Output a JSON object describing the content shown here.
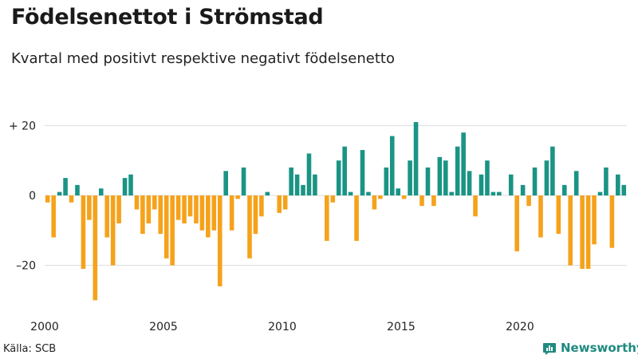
{
  "chart_data": {
    "type": "bar",
    "title": "Födelsenettot i Strömstad",
    "subtitle": "Kvartal med positivt respektive negativt födelsenetto",
    "xlabel": "",
    "ylabel": "",
    "ylim": [
      -32,
      24
    ],
    "yticks": [
      {
        "value": 20,
        "label": "+ 20"
      },
      {
        "value": 0,
        "label": "0"
      },
      {
        "value": -20,
        "label": "–20"
      }
    ],
    "xticks": [
      {
        "year": 2000,
        "label": "2000"
      },
      {
        "year": 2005,
        "label": "2005"
      },
      {
        "year": 2010,
        "label": "2010"
      },
      {
        "year": 2015,
        "label": "2015"
      },
      {
        "year": 2020,
        "label": "2020"
      }
    ],
    "start_year": 2000,
    "periods_per_year": 4,
    "positive_color": "#1a9485",
    "negative_color": "#f5a21b",
    "grid": true,
    "values": [
      -2,
      -12,
      1,
      5,
      -2,
      3,
      -21,
      -7,
      -30,
      2,
      -12,
      -20,
      -8,
      5,
      6,
      -4,
      -11,
      -8,
      -4,
      -11,
      -18,
      -20,
      -7,
      -8,
      -6,
      -8,
      -10,
      -12,
      -10,
      -26,
      7,
      -10,
      -1,
      8,
      -18,
      -11,
      -6,
      1,
      0,
      -5,
      -4,
      8,
      6,
      3,
      12,
      6,
      0,
      -13,
      -2,
      10,
      14,
      1,
      -13,
      13,
      1,
      -4,
      -1,
      8,
      17,
      2,
      -1,
      10,
      21,
      -3,
      8,
      -3,
      11,
      10,
      1,
      14,
      18,
      7,
      -6,
      6,
      10,
      1,
      1,
      0,
      6,
      -16,
      3,
      -3,
      8,
      -12,
      10,
      14,
      -11,
      3,
      -20,
      7,
      -21,
      -21,
      -14,
      1,
      8,
      -15,
      6,
      3
    ]
  },
  "footer": {
    "source": "Källa: SCB",
    "brand": "Newsworthy"
  }
}
